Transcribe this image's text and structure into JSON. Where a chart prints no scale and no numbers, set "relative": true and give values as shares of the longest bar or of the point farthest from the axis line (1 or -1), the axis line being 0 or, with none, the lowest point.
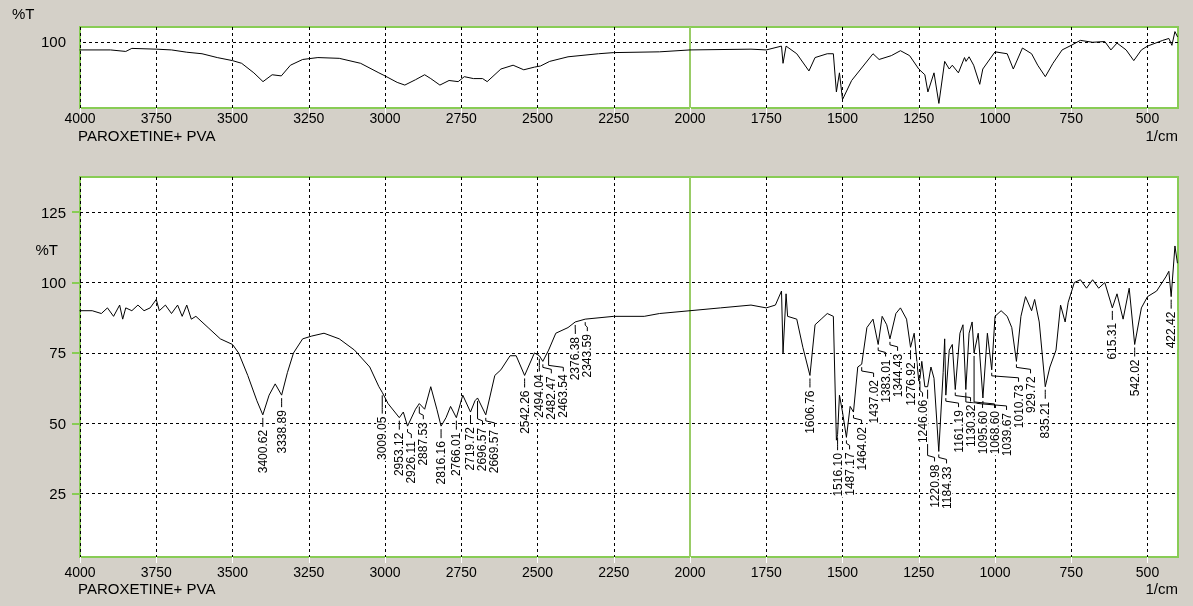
{
  "chart_data": [
    {
      "type": "line",
      "title": "PAROXETINE+ PVA",
      "xlabel": "1/cm",
      "ylabel": "%T",
      "relative": true,
      "grid": "x",
      "xlim": [
        4000,
        400
      ],
      "xticks": [
        4000,
        3750,
        3500,
        3250,
        3000,
        2750,
        2500,
        2250,
        2000,
        1750,
        1500,
        1250,
        1000,
        750,
        500
      ],
      "annotations": [
        "100"
      ],
      "ref_lines": [
        {
          "axis": "y",
          "value": 0.86,
          "label": null,
          "color": "#000000",
          "line_style": "dashed"
        },
        {
          "axis": "x",
          "value": 2000,
          "label": null,
          "color": "#99cc66",
          "line_style": "solid"
        }
      ],
      "x": [
        4000,
        3900,
        3850,
        3830,
        3750,
        3700,
        3650,
        3600,
        3550,
        3500,
        3470,
        3430,
        3400,
        3370,
        3340,
        3310,
        3270,
        3220,
        3150,
        3080,
        3020,
        3000,
        2960,
        2935,
        2900,
        2870,
        2850,
        2820,
        2790,
        2760,
        2740,
        2710,
        2680,
        2665,
        2620,
        2580,
        2545,
        2510,
        2490,
        2460,
        2400,
        2300,
        2250,
        2100,
        2000,
        1800,
        1750,
        1700,
        1695,
        1685,
        1650,
        1610,
        1590,
        1550,
        1530,
        1520,
        1510,
        1500,
        1470,
        1440,
        1400,
        1380,
        1340,
        1310,
        1280,
        1250,
        1230,
        1220,
        1200,
        1184,
        1165,
        1150,
        1140,
        1120,
        1100,
        1095,
        1085,
        1070,
        1050,
        1040,
        1000,
        960,
        940,
        910,
        880,
        860,
        835,
        810,
        780,
        750,
        720,
        680,
        640,
        620,
        600,
        570,
        545,
        520,
        500,
        450,
        430,
        420,
        410,
        402
      ],
      "series": [
        {
          "color": "#000000",
          "values": [
            0.76,
            0.76,
            0.74,
            0.78,
            0.77,
            0.76,
            0.73,
            0.71,
            0.66,
            0.62,
            0.585,
            0.46,
            0.345,
            0.435,
            0.42,
            0.56,
            0.635,
            0.66,
            0.65,
            0.585,
            0.46,
            0.42,
            0.335,
            0.3,
            0.37,
            0.435,
            0.385,
            0.3,
            0.36,
            0.345,
            0.41,
            0.385,
            0.385,
            0.345,
            0.51,
            0.56,
            0.5,
            0.535,
            0.55,
            0.61,
            0.67,
            0.71,
            0.725,
            0.735,
            0.76,
            0.77,
            0.76,
            0.81,
            0.585,
            0.81,
            0.71,
            0.485,
            0.66,
            0.71,
            0.71,
            0.21,
            0.46,
            0.11,
            0.36,
            0.51,
            0.71,
            0.635,
            0.685,
            0.75,
            0.685,
            0.51,
            0.435,
            0.21,
            0.46,
            0.06,
            0.61,
            0.51,
            0.56,
            0.46,
            0.66,
            0.61,
            0.67,
            0.56,
            0.31,
            0.51,
            0.735,
            0.71,
            0.51,
            0.785,
            0.71,
            0.56,
            0.41,
            0.585,
            0.76,
            0.82,
            0.885,
            0.86,
            0.87,
            0.76,
            0.85,
            0.76,
            0.62,
            0.76,
            0.81,
            0.885,
            0.91,
            0.82,
            1,
            0.935
          ]
        }
      ]
    },
    {
      "type": "line",
      "title": "PAROXETINE+ PVA",
      "xlabel": "1/cm",
      "ylabel": "%T",
      "grid": true,
      "xlim": [
        4000,
        400
      ],
      "xticks": [
        4000,
        3750,
        3500,
        3250,
        3000,
        2750,
        2500,
        2250,
        2000,
        1750,
        1500,
        1250,
        1000,
        750,
        500
      ],
      "ylim": [
        2.5,
        137.5
      ],
      "yticks": [
        25,
        50,
        75,
        100,
        125
      ],
      "ref_lines": [
        {
          "axis": "x",
          "value": 2000,
          "label": null,
          "color": "#99cc66",
          "line_style": "solid"
        }
      ],
      "x": [
        4000,
        3960,
        3930,
        3910,
        3890,
        3870,
        3860,
        3850,
        3830,
        3810,
        3790,
        3770,
        3750,
        3740,
        3720,
        3700,
        3680,
        3665,
        3650,
        3635,
        3620,
        3580,
        3540,
        3500,
        3480,
        3450,
        3420,
        3400.62,
        3380,
        3360,
        3338.89,
        3320,
        3300,
        3270,
        3240,
        3200,
        3150,
        3100,
        3050,
        3020,
        3009.05,
        2990,
        2953.12,
        2940,
        2926.11,
        2900,
        2887.53,
        2870,
        2850,
        2830,
        2816.16,
        2800,
        2785,
        2766.01,
        2745,
        2719.72,
        2705,
        2696.57,
        2669.57,
        2640,
        2620,
        2590,
        2570,
        2542.26,
        2510,
        2494.04,
        2482.47,
        2463.54,
        2440,
        2400,
        2376.38,
        2343.59,
        2250,
        2150,
        2100,
        2000,
        1900,
        1800,
        1750,
        1720,
        1700,
        1695,
        1685,
        1680,
        1650,
        1630,
        1606.76,
        1590,
        1570,
        1550,
        1530,
        1520,
        1516.1,
        1510,
        1500,
        1487.17,
        1475,
        1464.02,
        1450,
        1437.02,
        1420,
        1400,
        1383.01,
        1370,
        1355,
        1344.43,
        1325,
        1310,
        1290,
        1276.92,
        1265,
        1250,
        1246.06,
        1240,
        1230,
        1220.98,
        1210,
        1200,
        1184.33,
        1170,
        1165,
        1161.19,
        1150,
        1140,
        1130.32,
        1115,
        1105,
        1095.6,
        1085,
        1075,
        1068.6,
        1055,
        1039.67,
        1025,
        1010.73,
        1000,
        980,
        960,
        945,
        929.72,
        915,
        900,
        880,
        870,
        855,
        835.21,
        820,
        800,
        785,
        770,
        760,
        740,
        720,
        700,
        680,
        660,
        640,
        615.31,
        600,
        580,
        560,
        542.02,
        520,
        500,
        470,
        440,
        430,
        422.42,
        410,
        402
      ],
      "series": [
        {
          "color": "#000000",
          "values": [
            90,
            90,
            89,
            91,
            88,
            92,
            87,
            91,
            90,
            92,
            90,
            91,
            94,
            90,
            92,
            89,
            92,
            88,
            92,
            87,
            88,
            84,
            80,
            78,
            75,
            67,
            58,
            53,
            60,
            64,
            60,
            68,
            75,
            80,
            81,
            82,
            80,
            76,
            70,
            63,
            61,
            57,
            52,
            54,
            49,
            55,
            57,
            55,
            63,
            55,
            49,
            52,
            56,
            52,
            60,
            54,
            58,
            59,
            53,
            67,
            69,
            74,
            74,
            67,
            75,
            74,
            72,
            76,
            82,
            84,
            86,
            87,
            88,
            88,
            89,
            90,
            91,
            92,
            91,
            92,
            97,
            75,
            96,
            88,
            87,
            77,
            67,
            85,
            87,
            89,
            88,
            44,
            46,
            60,
            54,
            45,
            56,
            54,
            70,
            71,
            84,
            87,
            78,
            88,
            85,
            80,
            89,
            91,
            87,
            77,
            82,
            65,
            66,
            72,
            63,
            63,
            70,
            66,
            40,
            68,
            80,
            60,
            76,
            78,
            62,
            82,
            85,
            62,
            82,
            86,
            75,
            82,
            59,
            82,
            69,
            88,
            90,
            88,
            84,
            72,
            88,
            95,
            90,
            94,
            86,
            63,
            70,
            76,
            92,
            86,
            93,
            100,
            101,
            98,
            101,
            98,
            100,
            91,
            96,
            87,
            98,
            78,
            91,
            95,
            97,
            102,
            104,
            95,
            113,
            107
          ]
        }
      ],
      "annotations": [
        {
          "text": "3400.62",
          "x": 3400.62,
          "y": 53
        },
        {
          "text": "3338.89",
          "x": 3338.89,
          "y": 60
        },
        {
          "text": "3009.05",
          "x": 3009.05,
          "y": 61
        },
        {
          "text": "2953.12",
          "x": 2953.12,
          "y": 52
        },
        {
          "text": "2926.11",
          "x": 2926.11,
          "y": 49
        },
        {
          "text": "2887.53",
          "x": 2887.53,
          "y": 57
        },
        {
          "text": "2816.16",
          "x": 2816.16,
          "y": 49
        },
        {
          "text": "2766.01",
          "x": 2766.01,
          "y": 52
        },
        {
          "text": "2719.72",
          "x": 2719.72,
          "y": 54
        },
        {
          "text": "2696.57",
          "x": 2696.57,
          "y": 59
        },
        {
          "text": "2669.57",
          "x": 2669.57,
          "y": 53
        },
        {
          "text": "2542.26",
          "x": 2542.26,
          "y": 67
        },
        {
          "text": "2494.04",
          "x": 2494.04,
          "y": 74
        },
        {
          "text": "2482.47",
          "x": 2482.47,
          "y": 72
        },
        {
          "text": "2463.54",
          "x": 2463.54,
          "y": 76
        },
        {
          "text": "2376.38",
          "x": 2376.38,
          "y": 86
        },
        {
          "text": "2343.59",
          "x": 2343.59,
          "y": 87
        },
        {
          "text": "1606.76",
          "x": 1606.76,
          "y": 67
        },
        {
          "text": "1516.10",
          "x": 1516.1,
          "y": 46
        },
        {
          "text": "1487.17",
          "x": 1487.17,
          "y": 45
        },
        {
          "text": "1464.02",
          "x": 1464.02,
          "y": 54
        },
        {
          "text": "1437.02",
          "x": 1437.02,
          "y": 71
        },
        {
          "text": "1383.01",
          "x": 1383.01,
          "y": 78
        },
        {
          "text": "1344.43",
          "x": 1344.43,
          "y": 80
        },
        {
          "text": "1276.92",
          "x": 1276.92,
          "y": 77
        },
        {
          "text": "1246.06",
          "x": 1246.06,
          "y": 66
        },
        {
          "text": "1220.98",
          "x": 1220.98,
          "y": 63
        },
        {
          "text": "1184.33",
          "x": 1184.33,
          "y": 40
        },
        {
          "text": "1161.19",
          "x": 1161.19,
          "y": 60
        },
        {
          "text": "1130.32",
          "x": 1130.32,
          "y": 62
        },
        {
          "text": "1095.60",
          "x": 1095.6,
          "y": 62
        },
        {
          "text": "1068.60",
          "x": 1068.6,
          "y": 75
        },
        {
          "text": "1039.67",
          "x": 1039.67,
          "y": 59
        },
        {
          "text": "1010.73",
          "x": 1010.73,
          "y": 69
        },
        {
          "text": "929.72",
          "x": 929.72,
          "y": 72
        },
        {
          "text": "835.21",
          "x": 835.21,
          "y": 63
        },
        {
          "text": "615.31",
          "x": 615.31,
          "y": 91
        },
        {
          "text": "542.02",
          "x": 542.02,
          "y": 78
        },
        {
          "text": "422.42",
          "x": 422.42,
          "y": 95
        }
      ]
    }
  ]
}
